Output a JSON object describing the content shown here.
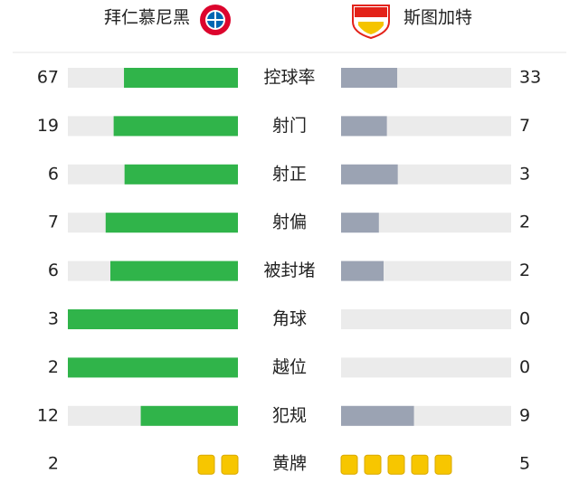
{
  "header": {
    "home": "拜仁慕尼黑",
    "away": "斯图加特"
  },
  "stats": [
    {
      "label": "控球率",
      "home": 67,
      "away": 33
    },
    {
      "label": "射门",
      "home": 19,
      "away": 7
    },
    {
      "label": "射正",
      "home": 6,
      "away": 3
    },
    {
      "label": "射偏",
      "home": 7,
      "away": 2
    },
    {
      "label": "被封堵",
      "home": 6,
      "away": 2
    },
    {
      "label": "角球",
      "home": 3,
      "away": 0
    },
    {
      "label": "越位",
      "home": 2,
      "away": 0
    },
    {
      "label": "犯规",
      "home": 12,
      "away": 9
    },
    {
      "label": "黄牌",
      "home": 2,
      "away": 5,
      "kind": "cards"
    }
  ]
}
